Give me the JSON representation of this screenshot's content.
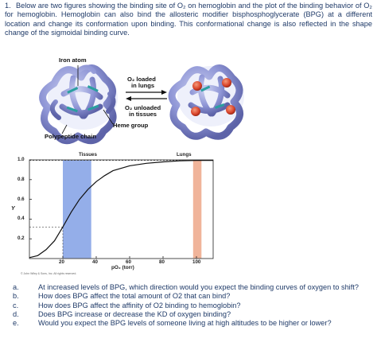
{
  "question": {
    "number": "1.",
    "intro": "Below are two figures showing the binding site of O₂ on hemoglobin and the plot of the binding behavior of O₂ for hemoglobin.   Hemoglobin can also bind the allosteric modifier bisphosphoglycerate (BPG) at a different location and change its conformation upon binding. This conformational change is also reflected in the shape change of the sigmoidal binding curve."
  },
  "figure": {
    "iron_atom": "Iron atom",
    "o2_loaded": "O₂ loaded",
    "in_lungs": "in lungs",
    "o2_unloaded": "O₂ unloaded",
    "in_tissues": "in tissues",
    "heme_group": "Heme group",
    "polypeptide_chain": "Polypeptide chain",
    "credit": "© John Wiley & Sons, Inc. All rights reserved."
  },
  "chart_data": {
    "type": "line",
    "xlabel": "pO₂ (torr)",
    "ylabel": "Y",
    "xlim": [
      0,
      110
    ],
    "ylim": [
      0,
      1.0
    ],
    "x_ticks": [
      20,
      40,
      60,
      80,
      100
    ],
    "y_ticks": [
      "0.2",
      "0.4",
      "0.6",
      "0.8",
      "1.0"
    ],
    "band_labels": [
      "Tissues",
      "Lungs"
    ],
    "tissues_band": [
      20,
      37
    ],
    "lungs_band": [
      98,
      103
    ],
    "tissues_color": "#94aee9",
    "lungs_color": "#f0b49a",
    "curve_x": [
      0,
      5,
      10,
      15,
      20,
      25,
      30,
      35,
      40,
      45,
      50,
      60,
      70,
      80,
      90,
      100,
      110
    ],
    "curve_y": [
      0.01,
      0.03,
      0.09,
      0.18,
      0.32,
      0.47,
      0.6,
      0.7,
      0.78,
      0.84,
      0.89,
      0.94,
      0.965,
      0.98,
      0.99,
      0.995,
      0.995
    ]
  },
  "questions": [
    {
      "letter": "a.",
      "text": "At increased levels of BPG, which direction would you expect the binding curves of oxygen to shift?"
    },
    {
      "letter": "b.",
      "text": "How does BPG affect the total amount of O2 that can bind?"
    },
    {
      "letter": "c.",
      "text": "How does BPG affect the affinity of O2 binding to hemoglobin?"
    },
    {
      "letter": "d.",
      "text": "Does BPG increase or decrease the KD of oxygen binding?"
    },
    {
      "letter": "e.",
      "text": "Would you expect the BPG levels of someone living at high altitudes to be higher or lower?"
    }
  ]
}
